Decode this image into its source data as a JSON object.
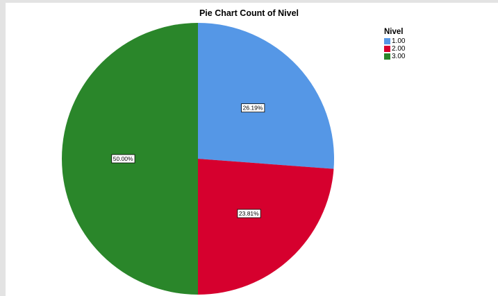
{
  "chart_data": {
    "type": "pie",
    "title": "Pie Chart Count of Nivel",
    "legend_title": "Nivel",
    "legend_position": "top-right",
    "categories": [
      "1.00",
      "2.00",
      "3.00"
    ],
    "values": [
      26.19,
      23.81,
      50.0
    ],
    "labels": [
      "26.19%",
      "23.81%",
      "50.00%"
    ],
    "colors": [
      "#5597e6",
      "#d6002e",
      "#2a862a"
    ],
    "start_angle": "top",
    "direction": "clockwise"
  }
}
